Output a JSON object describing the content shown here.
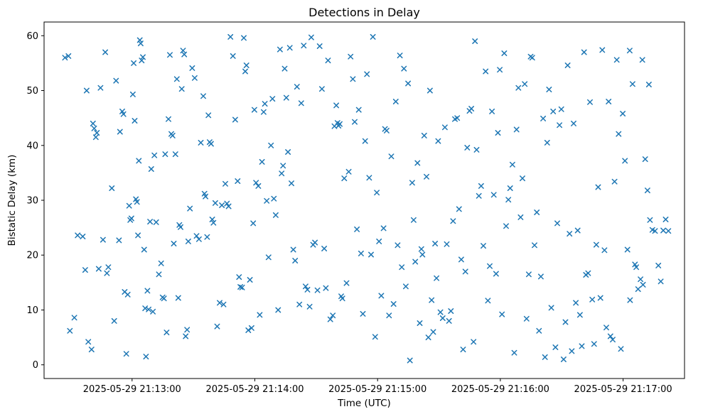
{
  "title": "Detections in Delay",
  "chart_data": {
    "type": "scatter",
    "title": "Detections in Delay",
    "xlabel": "Time (UTC)",
    "ylabel": "Bistatic Delay (km)",
    "marker": "x",
    "marker_color": "#1f77b4",
    "grid": false,
    "legend": "none",
    "x_unit": "seconds after 2025-05-29 21:12:00 UTC",
    "xlim": [
      17,
      330
    ],
    "ylim": [
      -2.5,
      62.5
    ],
    "x_ticks": {
      "values": [
        60,
        120,
        180,
        240,
        300
      ],
      "labels": [
        "2025-05-29 21:13:00",
        "2025-05-29 21:14:00",
        "2025-05-29 21:15:00",
        "2025-05-29 21:16:00",
        "2025-05-29 21:17:00"
      ]
    },
    "y_ticks": [
      0,
      10,
      20,
      30,
      40,
      50,
      60
    ],
    "points": [
      [
        27.2,
        56.0
      ],
      [
        28.9,
        56.3
      ],
      [
        29.6,
        6.2
      ],
      [
        31.8,
        8.6
      ],
      [
        33.4,
        23.6
      ],
      [
        35.9,
        23.4
      ],
      [
        37.1,
        17.3
      ],
      [
        37.8,
        50.0
      ],
      [
        38.6,
        4.2
      ],
      [
        40.2,
        2.8
      ],
      [
        40.9,
        44.0
      ],
      [
        41.5,
        43.1
      ],
      [
        42.3,
        41.5
      ],
      [
        42.8,
        42.3
      ],
      [
        43.7,
        17.5
      ],
      [
        44.6,
        50.5
      ],
      [
        45.8,
        22.8
      ],
      [
        46.9,
        57.0
      ],
      [
        47.7,
        16.7
      ],
      [
        48.4,
        17.8
      ],
      [
        50.1,
        32.2
      ],
      [
        51.3,
        8.0
      ],
      [
        52.2,
        51.8
      ],
      [
        53.6,
        22.7
      ],
      [
        54.1,
        42.5
      ],
      [
        55.2,
        46.2
      ],
      [
        55.8,
        45.7
      ],
      [
        56.4,
        13.3
      ],
      [
        57.2,
        2.0
      ],
      [
        57.9,
        12.8
      ],
      [
        58.6,
        29.0
      ],
      [
        59.1,
        26.4
      ],
      [
        59.7,
        26.7
      ],
      [
        60.4,
        49.3
      ],
      [
        60.8,
        55.0
      ],
      [
        61.3,
        44.5
      ],
      [
        61.9,
        30.2
      ],
      [
        62.4,
        29.7
      ],
      [
        62.9,
        23.6
      ],
      [
        63.3,
        37.2
      ],
      [
        63.8,
        59.2
      ],
      [
        64.2,
        58.6
      ],
      [
        64.7,
        55.5
      ],
      [
        65.3,
        56.1
      ],
      [
        65.9,
        21.0
      ],
      [
        66.4,
        10.3
      ],
      [
        66.8,
        1.5
      ],
      [
        67.5,
        13.5
      ],
      [
        68.1,
        10.1
      ],
      [
        68.8,
        26.1
      ],
      [
        69.4,
        35.7
      ],
      [
        70.2,
        9.7
      ],
      [
        70.9,
        38.2
      ],
      [
        71.8,
        26.0
      ],
      [
        73.1,
        16.5
      ],
      [
        74.2,
        18.5
      ],
      [
        74.9,
        12.3
      ],
      [
        75.6,
        12.1
      ],
      [
        76.2,
        38.4
      ],
      [
        76.9,
        5.9
      ],
      [
        77.8,
        44.8
      ],
      [
        78.5,
        56.5
      ],
      [
        79.2,
        42.1
      ],
      [
        79.8,
        41.8
      ],
      [
        80.4,
        22.1
      ],
      [
        81.2,
        38.4
      ],
      [
        81.9,
        52.1
      ],
      [
        82.6,
        12.2
      ],
      [
        83.1,
        25.5
      ],
      [
        83.7,
        25.1
      ],
      [
        84.3,
        50.3
      ],
      [
        84.9,
        57.3
      ],
      [
        85.5,
        56.6
      ],
      [
        86.2,
        5.2
      ],
      [
        86.9,
        6.4
      ],
      [
        87.5,
        22.5
      ],
      [
        88.3,
        28.5
      ],
      [
        89.4,
        54.1
      ],
      [
        90.6,
        52.3
      ],
      [
        91.5,
        23.5
      ],
      [
        92.7,
        22.9
      ],
      [
        93.6,
        40.5
      ],
      [
        94.8,
        49.0
      ],
      [
        95.4,
        31.2
      ],
      [
        95.9,
        30.7
      ],
      [
        96.7,
        23.3
      ],
      [
        97.3,
        45.5
      ],
      [
        97.9,
        40.6
      ],
      [
        98.6,
        40.3
      ],
      [
        99.2,
        26.5
      ],
      [
        99.8,
        25.9
      ],
      [
        100.7,
        29.5
      ],
      [
        101.6,
        7.0
      ],
      [
        102.8,
        11.3
      ],
      [
        103.9,
        29.1
      ],
      [
        104.7,
        11.0
      ],
      [
        105.6,
        33.0
      ],
      [
        106.4,
        29.4
      ],
      [
        107.2,
        28.9
      ],
      [
        108.1,
        59.8
      ],
      [
        109.3,
        56.3
      ],
      [
        110.4,
        44.7
      ],
      [
        111.6,
        33.5
      ],
      [
        112.3,
        16.0
      ],
      [
        112.9,
        14.2
      ],
      [
        113.8,
        14.1
      ],
      [
        114.6,
        59.6
      ],
      [
        115.3,
        53.5
      ],
      [
        115.9,
        54.6
      ],
      [
        116.8,
        6.3
      ],
      [
        117.6,
        15.5
      ],
      [
        118.4,
        6.7
      ],
      [
        119.2,
        25.8
      ],
      [
        119.8,
        46.5
      ],
      [
        120.6,
        33.2
      ],
      [
        121.7,
        32.6
      ],
      [
        122.4,
        9.1
      ],
      [
        123.5,
        37.0
      ],
      [
        124.3,
        46.1
      ],
      [
        124.9,
        47.6
      ],
      [
        125.8,
        29.9
      ],
      [
        126.7,
        19.6
      ],
      [
        127.9,
        40.0
      ],
      [
        128.6,
        48.5
      ],
      [
        129.3,
        30.3
      ],
      [
        130.2,
        27.3
      ],
      [
        131.4,
        10.0
      ],
      [
        132.3,
        57.5
      ],
      [
        133.1,
        34.9
      ],
      [
        133.8,
        36.3
      ],
      [
        134.6,
        54.0
      ],
      [
        135.4,
        48.7
      ],
      [
        136.2,
        38.8
      ],
      [
        137.1,
        57.8
      ],
      [
        137.9,
        33.1
      ],
      [
        138.8,
        21.0
      ],
      [
        139.7,
        19.0
      ],
      [
        140.6,
        50.7
      ],
      [
        141.8,
        11.0
      ],
      [
        142.7,
        47.7
      ],
      [
        143.9,
        58.2
      ],
      [
        144.8,
        14.3
      ],
      [
        145.7,
        13.7
      ],
      [
        146.8,
        10.6
      ],
      [
        147.6,
        59.7
      ],
      [
        148.5,
        21.9
      ],
      [
        149.4,
        22.3
      ],
      [
        150.6,
        13.6
      ],
      [
        151.7,
        58.1
      ],
      [
        152.8,
        50.3
      ],
      [
        153.9,
        21.2
      ],
      [
        154.7,
        14.0
      ],
      [
        155.8,
        55.5
      ],
      [
        156.9,
        8.3
      ],
      [
        158.1,
        9.0
      ],
      [
        158.9,
        43.5
      ],
      [
        159.8,
        47.3
      ],
      [
        160.4,
        44.1
      ],
      [
        160.9,
        43.6
      ],
      [
        161.5,
        43.9
      ],
      [
        162.2,
        12.5
      ],
      [
        162.8,
        12.1
      ],
      [
        163.7,
        34.0
      ],
      [
        164.8,
        14.9
      ],
      [
        165.9,
        35.2
      ],
      [
        166.8,
        56.2
      ],
      [
        167.9,
        52.1
      ],
      [
        168.8,
        44.3
      ],
      [
        169.9,
        24.7
      ],
      [
        170.8,
        46.5
      ],
      [
        171.9,
        20.3
      ],
      [
        172.8,
        9.3
      ],
      [
        173.9,
        40.8
      ],
      [
        174.8,
        53.0
      ],
      [
        175.9,
        34.1
      ],
      [
        176.8,
        20.1
      ],
      [
        177.7,
        59.8
      ],
      [
        178.8,
        5.1
      ],
      [
        179.6,
        31.4
      ],
      [
        180.7,
        22.5
      ],
      [
        181.8,
        12.6
      ],
      [
        182.9,
        24.9
      ],
      [
        183.6,
        43.0
      ],
      [
        184.4,
        42.7
      ],
      [
        185.6,
        9.0
      ],
      [
        186.7,
        38.0
      ],
      [
        187.8,
        11.1
      ],
      [
        188.9,
        48.0
      ],
      [
        189.8,
        21.8
      ],
      [
        190.9,
        56.4
      ],
      [
        191.8,
        17.8
      ],
      [
        192.9,
        54.0
      ],
      [
        193.8,
        14.3
      ],
      [
        194.9,
        51.3
      ],
      [
        195.8,
        0.8
      ],
      [
        196.9,
        33.2
      ],
      [
        197.6,
        26.4
      ],
      [
        198.4,
        18.8
      ],
      [
        199.5,
        36.8
      ],
      [
        200.6,
        7.6
      ],
      [
        201.4,
        21.1
      ],
      [
        201.9,
        20.1
      ],
      [
        202.8,
        41.8
      ],
      [
        203.9,
        34.3
      ],
      [
        204.8,
        5.0
      ],
      [
        205.6,
        50.0
      ],
      [
        206.4,
        11.8
      ],
      [
        207.2,
        6.0
      ],
      [
        208.1,
        22.1
      ],
      [
        208.8,
        15.8
      ],
      [
        209.6,
        40.8
      ],
      [
        210.7,
        9.6
      ],
      [
        211.8,
        8.5
      ],
      [
        212.9,
        43.3
      ],
      [
        213.8,
        22.0
      ],
      [
        214.9,
        8.0
      ],
      [
        215.8,
        9.8
      ],
      [
        216.9,
        26.2
      ],
      [
        217.8,
        44.8
      ],
      [
        218.9,
        45.0
      ],
      [
        219.8,
        28.4
      ],
      [
        220.9,
        19.2
      ],
      [
        221.8,
        2.8
      ],
      [
        222.9,
        17.0
      ],
      [
        223.8,
        39.6
      ],
      [
        224.9,
        46.3
      ],
      [
        225.8,
        46.7
      ],
      [
        226.9,
        4.2
      ],
      [
        227.6,
        59.0
      ],
      [
        228.4,
        39.2
      ],
      [
        229.5,
        30.8
      ],
      [
        230.6,
        32.6
      ],
      [
        231.7,
        21.7
      ],
      [
        232.8,
        53.5
      ],
      [
        233.9,
        11.7
      ],
      [
        234.8,
        18.0
      ],
      [
        235.9,
        46.2
      ],
      [
        236.8,
        31.0
      ],
      [
        237.9,
        16.6
      ],
      [
        238.8,
        42.3
      ],
      [
        239.7,
        53.8
      ],
      [
        240.8,
        9.2
      ],
      [
        241.9,
        56.8
      ],
      [
        242.8,
        25.3
      ],
      [
        243.9,
        30.1
      ],
      [
        244.8,
        32.2
      ],
      [
        245.9,
        36.5
      ],
      [
        246.8,
        2.2
      ],
      [
        247.9,
        42.9
      ],
      [
        248.8,
        50.5
      ],
      [
        249.9,
        26.9
      ],
      [
        250.8,
        34.0
      ],
      [
        251.9,
        51.2
      ],
      [
        252.8,
        8.4
      ],
      [
        253.9,
        16.5
      ],
      [
        254.8,
        56.2
      ],
      [
        255.6,
        56.0
      ],
      [
        256.7,
        21.8
      ],
      [
        257.8,
        27.8
      ],
      [
        258.9,
        6.2
      ],
      [
        259.8,
        16.1
      ],
      [
        260.9,
        44.9
      ],
      [
        261.8,
        1.4
      ],
      [
        262.9,
        40.5
      ],
      [
        263.8,
        50.2
      ],
      [
        264.9,
        10.4
      ],
      [
        265.8,
        46.2
      ],
      [
        266.9,
        3.2
      ],
      [
        267.8,
        25.8
      ],
      [
        268.9,
        43.7
      ],
      [
        269.8,
        46.6
      ],
      [
        270.9,
        1.0
      ],
      [
        271.8,
        7.8
      ],
      [
        272.9,
        54.6
      ],
      [
        273.8,
        23.9
      ],
      [
        274.9,
        2.5
      ],
      [
        275.8,
        44.0
      ],
      [
        276.9,
        11.3
      ],
      [
        277.8,
        24.5
      ],
      [
        278.9,
        9.1
      ],
      [
        279.8,
        3.4
      ],
      [
        280.9,
        57.0
      ],
      [
        281.8,
        16.4
      ],
      [
        282.9,
        16.7
      ],
      [
        283.8,
        47.9
      ],
      [
        284.9,
        11.9
      ],
      [
        285.8,
        3.8
      ],
      [
        286.9,
        21.9
      ],
      [
        287.8,
        32.4
      ],
      [
        288.9,
        12.2
      ],
      [
        289.8,
        57.4
      ],
      [
        290.9,
        20.9
      ],
      [
        291.8,
        6.8
      ],
      [
        292.9,
        48.0
      ],
      [
        293.8,
        5.2
      ],
      [
        294.9,
        4.6
      ],
      [
        295.8,
        33.4
      ],
      [
        296.9,
        55.6
      ],
      [
        297.8,
        42.1
      ],
      [
        298.9,
        2.9
      ],
      [
        299.8,
        45.8
      ],
      [
        300.9,
        37.2
      ],
      [
        302.1,
        21.0
      ],
      [
        303.2,
        57.3
      ],
      [
        303.4,
        11.8
      ],
      [
        304.6,
        51.2
      ],
      [
        305.8,
        18.3
      ],
      [
        306.4,
        17.8
      ],
      [
        307.3,
        13.8
      ],
      [
        308.5,
        15.6
      ],
      [
        309.4,
        55.6
      ],
      [
        309.7,
        14.6
      ],
      [
        310.8,
        37.5
      ],
      [
        311.9,
        31.8
      ],
      [
        312.6,
        51.1
      ],
      [
        313.1,
        26.4
      ],
      [
        314.3,
        24.6
      ],
      [
        315.6,
        24.4
      ],
      [
        317.2,
        18.1
      ],
      [
        318.4,
        15.2
      ],
      [
        319.6,
        24.5
      ],
      [
        320.8,
        26.5
      ],
      [
        322.1,
        24.4
      ]
    ]
  }
}
